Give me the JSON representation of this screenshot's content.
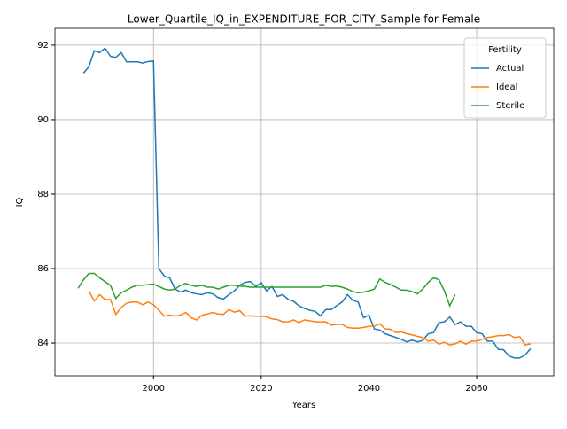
{
  "chart_data": {
    "type": "line",
    "title": "Lower_Quartile_IQ_in_EXPENDITURE_FOR_CITY_Sample for Female",
    "xlabel": "Years",
    "ylabel": "IQ",
    "legend_title": "Fertility",
    "legend": "upper right",
    "grid": true,
    "x": [
      1986,
      1987,
      1988,
      1989,
      1990,
      1991,
      1992,
      1993,
      1994,
      1995,
      1996,
      1997,
      1998,
      1999,
      2000,
      2001,
      2002,
      2003,
      2004,
      2005,
      2006,
      2007,
      2008,
      2009,
      2010,
      2011,
      2012,
      2013,
      2014,
      2015,
      2016,
      2017,
      2018,
      2019,
      2020,
      2021,
      2022,
      2023,
      2024,
      2025,
      2026,
      2027,
      2028,
      2029,
      2030,
      2031,
      2032,
      2033,
      2034,
      2035,
      2036,
      2037,
      2038,
      2039,
      2040,
      2041,
      2042,
      2043,
      2044,
      2045,
      2046,
      2047,
      2048,
      2049,
      2050,
      2051,
      2052,
      2053,
      2054,
      2055,
      2056,
      2057,
      2058,
      2059,
      2060,
      2061,
      2062,
      2063,
      2064,
      2065,
      2066,
      2067,
      2068,
      2069,
      2070
    ],
    "series": [
      {
        "name": "Actual",
        "color": "#1f77b4",
        "values": [
          null,
          91.25,
          91.42,
          91.85,
          91.8,
          91.92,
          91.7,
          91.67,
          91.8,
          91.55,
          91.55,
          91.55,
          91.52,
          91.56,
          91.57,
          86.0,
          85.8,
          85.75,
          85.45,
          85.37,
          85.42,
          85.35,
          85.32,
          85.3,
          85.35,
          85.32,
          85.22,
          85.18,
          85.3,
          85.4,
          85.55,
          85.63,
          85.65,
          85.52,
          85.62,
          85.4,
          85.52,
          85.25,
          85.3,
          85.17,
          85.12,
          85.0,
          84.93,
          84.88,
          84.85,
          84.73,
          84.9,
          84.9,
          85.0,
          85.1,
          85.3,
          85.15,
          85.1,
          84.68,
          84.75,
          84.38,
          84.35,
          84.25,
          84.2,
          84.15,
          84.1,
          84.03,
          84.08,
          84.03,
          84.07,
          84.25,
          84.28,
          84.55,
          84.57,
          84.7,
          84.5,
          84.57,
          84.45,
          84.45,
          84.28,
          84.25,
          84.05,
          84.05,
          83.83,
          83.82,
          83.65,
          83.6,
          83.6,
          83.68,
          83.85
        ]
      },
      {
        "name": "Ideal",
        "color": "#ff7f0e",
        "values": [
          null,
          null,
          85.4,
          85.13,
          85.3,
          85.17,
          85.17,
          84.77,
          84.95,
          85.07,
          85.1,
          85.1,
          85.03,
          85.1,
          85.03,
          84.88,
          84.72,
          84.75,
          84.72,
          84.75,
          84.82,
          84.68,
          84.62,
          84.75,
          84.78,
          84.82,
          84.78,
          84.77,
          84.9,
          84.83,
          84.87,
          84.72,
          84.73,
          84.72,
          84.72,
          84.7,
          84.65,
          84.63,
          84.57,
          84.57,
          84.62,
          84.55,
          84.62,
          84.6,
          84.57,
          84.57,
          84.57,
          84.48,
          84.5,
          84.5,
          84.42,
          84.4,
          84.4,
          84.42,
          84.45,
          84.45,
          84.52,
          84.38,
          84.37,
          84.28,
          84.3,
          84.25,
          84.22,
          84.18,
          84.15,
          84.05,
          84.08,
          83.97,
          84.02,
          83.95,
          83.98,
          84.05,
          83.97,
          84.05,
          84.05,
          84.1,
          84.15,
          84.17,
          84.2,
          84.2,
          84.23,
          84.15,
          84.17,
          83.95,
          83.98
        ]
      },
      {
        "name": "Sterile",
        "color": "#2ca02c",
        "values": [
          85.47,
          85.7,
          85.87,
          85.87,
          85.75,
          85.65,
          85.55,
          85.2,
          85.35,
          85.42,
          85.5,
          85.55,
          85.55,
          85.57,
          85.58,
          85.52,
          85.45,
          85.42,
          85.45,
          85.55,
          85.6,
          85.55,
          85.52,
          85.55,
          85.5,
          85.5,
          85.45,
          85.5,
          85.55,
          85.55,
          85.53,
          85.52,
          85.5,
          85.5,
          85.5,
          85.5,
          85.5,
          85.5,
          85.5,
          85.5,
          85.5,
          85.5,
          85.5,
          85.5,
          85.5,
          85.5,
          85.55,
          85.52,
          85.53,
          85.5,
          85.45,
          85.38,
          85.35,
          85.37,
          85.4,
          85.45,
          85.72,
          85.63,
          85.57,
          85.5,
          85.42,
          85.42,
          85.38,
          85.32,
          85.45,
          85.63,
          85.75,
          85.7,
          85.4,
          85.0,
          85.3,
          null,
          null,
          null,
          null,
          null,
          null,
          null,
          null,
          null,
          null,
          null,
          null,
          null,
          null
        ]
      }
    ],
    "xlim": [
      1981.7,
      2074.3
    ],
    "xticks": [
      2000,
      2020,
      2040,
      2060
    ],
    "ylim": [
      83.12,
      92.45
    ],
    "yticks": [
      84,
      86,
      88,
      90,
      92
    ]
  }
}
